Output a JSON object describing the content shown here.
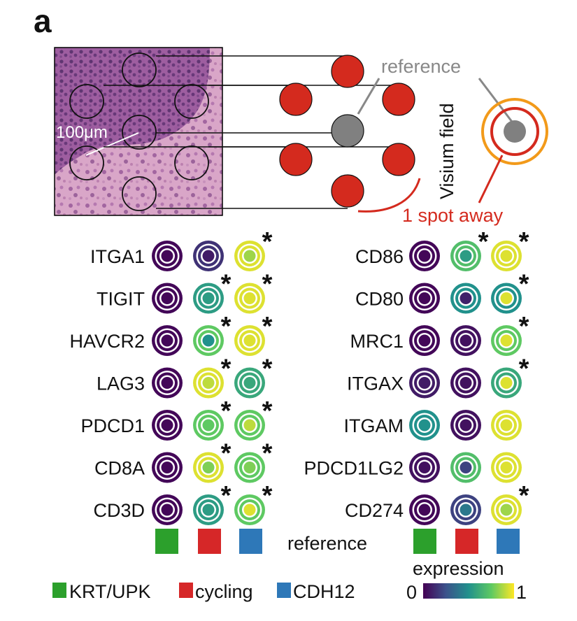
{
  "panel_label": "a",
  "histology": {
    "scale_label": "100μm"
  },
  "schematic": {
    "reference_label": "reference",
    "field_label": "Visium field",
    "spot_away_label": "1 spot away"
  },
  "colors": {
    "spot_red": "#d42a1e",
    "spot_gray": "#808080",
    "ring_orange": "#f29a1a",
    "ring_red": "#d42a1e",
    "ref_gray_line": "#888888",
    "KRT_UPK": "#2ca02c",
    "cycling": "#d62728",
    "CDH12": "#2e78b8"
  },
  "left_genes": [
    {
      "name": "ITGA1",
      "values": [
        [
          0.02,
          0.02
        ],
        [
          0.15,
          0.08
        ],
        [
          0.95,
          0.85
        ]
      ],
      "stars": [
        false,
        false,
        true
      ]
    },
    {
      "name": "TIGIT",
      "values": [
        [
          0.02,
          0.02
        ],
        [
          0.55,
          0.55
        ],
        [
          0.95,
          0.95
        ]
      ],
      "stars": [
        false,
        true,
        true
      ]
    },
    {
      "name": "HAVCR2",
      "values": [
        [
          0.02,
          0.02
        ],
        [
          0.75,
          0.5
        ],
        [
          0.95,
          0.95
        ]
      ],
      "stars": [
        false,
        true,
        true
      ]
    },
    {
      "name": "LAG3",
      "values": [
        [
          0.02,
          0.02
        ],
        [
          0.95,
          0.9
        ],
        [
          0.6,
          0.6
        ]
      ],
      "stars": [
        false,
        true,
        true
      ]
    },
    {
      "name": "PDCD1",
      "values": [
        [
          0.02,
          0.02
        ],
        [
          0.75,
          0.75
        ],
        [
          0.75,
          0.9
        ]
      ],
      "stars": [
        false,
        true,
        true
      ]
    },
    {
      "name": "CD8A",
      "values": [
        [
          0.02,
          0.02
        ],
        [
          0.95,
          0.8
        ],
        [
          0.75,
          0.8
        ]
      ],
      "stars": [
        false,
        true,
        true
      ]
    },
    {
      "name": "CD3D",
      "values": [
        [
          0.02,
          0.02
        ],
        [
          0.55,
          0.55
        ],
        [
          0.75,
          0.95
        ]
      ],
      "stars": [
        false,
        true,
        true
      ]
    }
  ],
  "right_genes": [
    {
      "name": "CD86",
      "values": [
        [
          0.02,
          0.02
        ],
        [
          0.7,
          0.55
        ],
        [
          0.95,
          0.95
        ]
      ],
      "stars": [
        false,
        true,
        true
      ]
    },
    {
      "name": "CD80",
      "values": [
        [
          0.02,
          0.02
        ],
        [
          0.5,
          0.1
        ],
        [
          0.5,
          0.95
        ]
      ],
      "stars": [
        false,
        false,
        true
      ]
    },
    {
      "name": "MRC1",
      "values": [
        [
          0.02,
          0.02
        ],
        [
          0.05,
          0.05
        ],
        [
          0.75,
          0.95
        ]
      ],
      "stars": [
        false,
        false,
        true
      ]
    },
    {
      "name": "ITGAX",
      "values": [
        [
          0.08,
          0.08
        ],
        [
          0.05,
          0.05
        ],
        [
          0.6,
          0.95
        ]
      ],
      "stars": [
        false,
        false,
        true
      ]
    },
    {
      "name": "ITGAM",
      "values": [
        [
          0.5,
          0.5
        ],
        [
          0.05,
          0.05
        ],
        [
          0.95,
          0.95
        ]
      ],
      "stars": [
        false,
        false,
        false
      ]
    },
    {
      "name": "PDCD1LG2",
      "values": [
        [
          0.05,
          0.05
        ],
        [
          0.7,
          0.2
        ],
        [
          0.95,
          0.95
        ]
      ],
      "stars": [
        false,
        false,
        false
      ]
    },
    {
      "name": "CD274",
      "values": [
        [
          0.02,
          0.02
        ],
        [
          0.2,
          0.4
        ],
        [
          0.95,
          0.85
        ]
      ],
      "stars": [
        false,
        false,
        true
      ]
    }
  ],
  "reference_row_label": "reference",
  "legend": {
    "items": [
      {
        "label": "KRT/UPK",
        "color": "#2ca02c"
      },
      {
        "label": "cycling",
        "color": "#d62728"
      },
      {
        "label": "CDH12",
        "color": "#2e78b8"
      }
    ],
    "colorbar_title": "expression",
    "colorbar_min": "0",
    "colorbar_max": "1"
  }
}
